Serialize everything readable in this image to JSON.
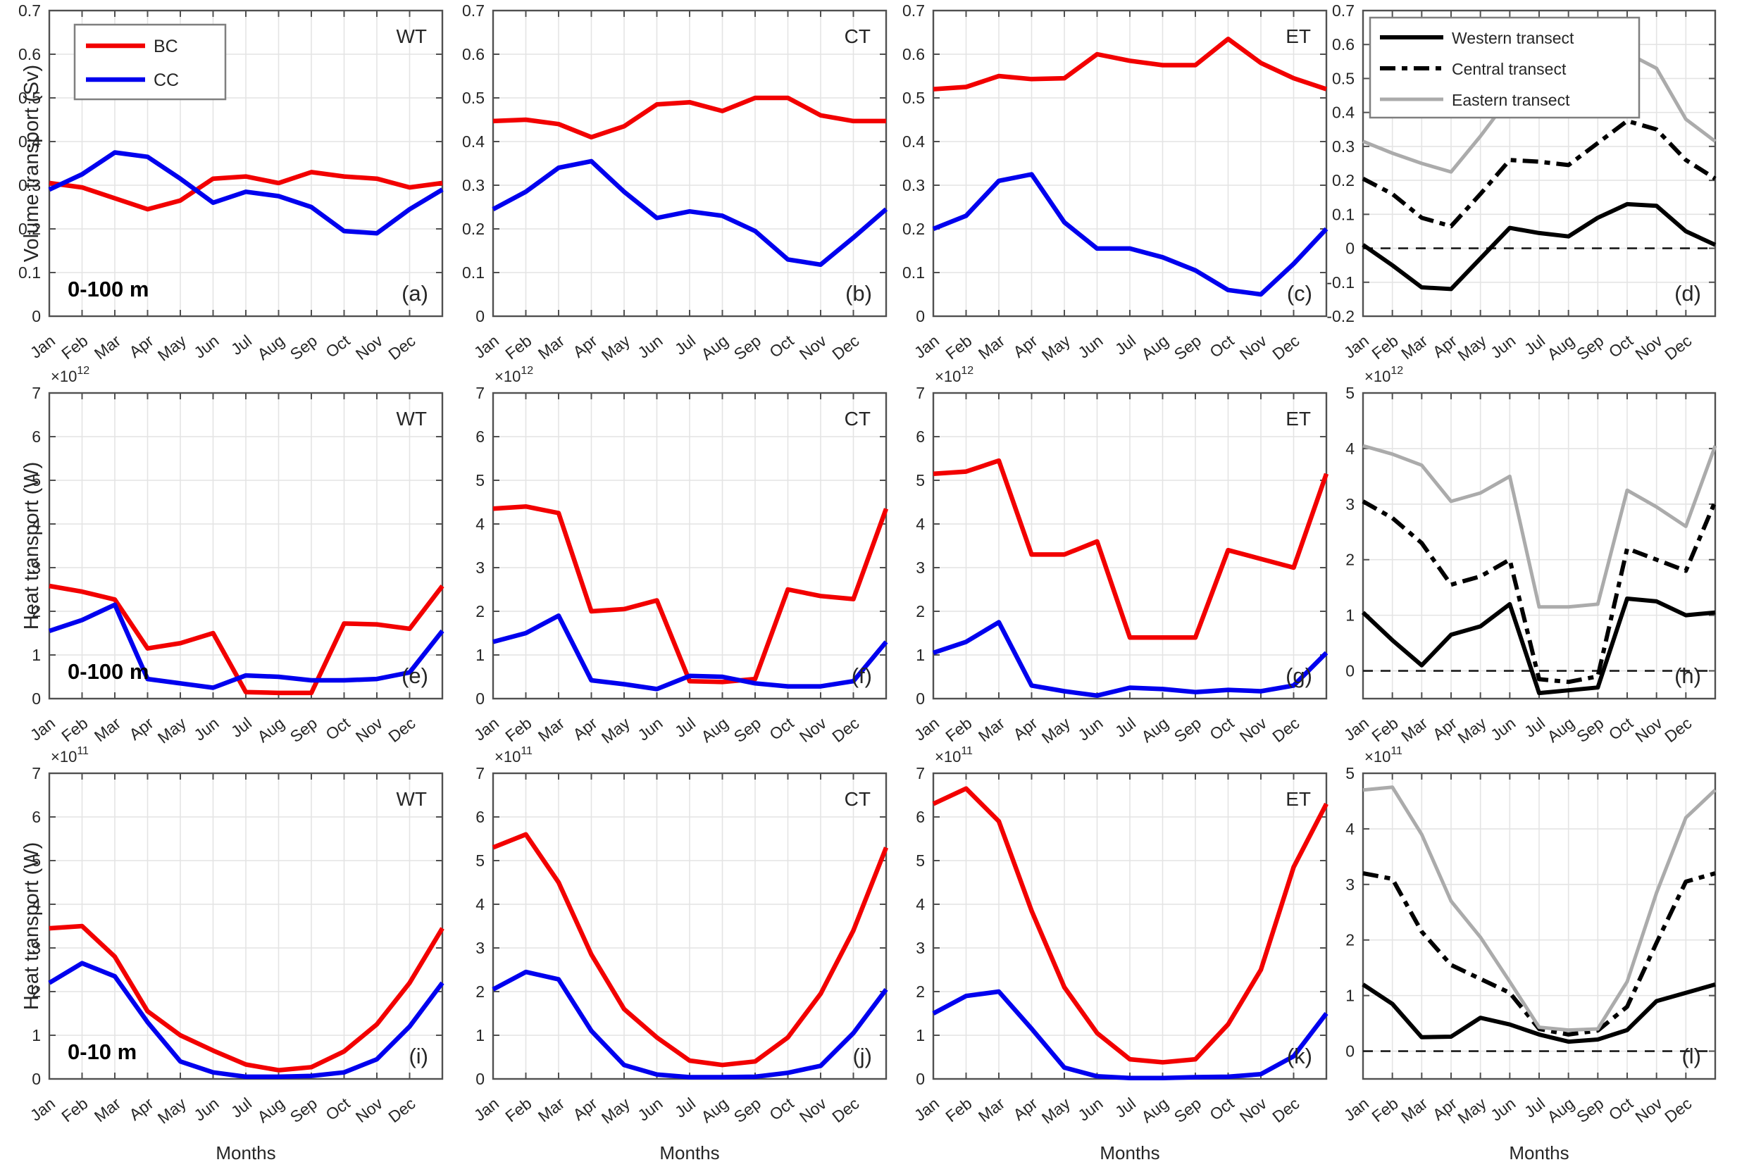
{
  "figure": {
    "xlabel": "Months",
    "row_ylabels": [
      "Volume transport (Sv)",
      "Heat transport (W)",
      "Heat transport (W)"
    ],
    "colors": {
      "bc": "#f20000",
      "cc": "#0000ee",
      "western": "#000000",
      "central": "#000000",
      "eastern": "#ababab",
      "grid": "#e4e4e4",
      "axis": "#505050",
      "text": "#262626",
      "zero_line": "#1a1a1a",
      "legend_border": "#7f7f7f"
    },
    "legends": {
      "a": [
        {
          "label": "BC",
          "color": "bc",
          "style": "solid"
        },
        {
          "label": "CC",
          "color": "cc",
          "style": "solid"
        }
      ],
      "d": [
        {
          "label": "Western transect",
          "color": "western",
          "style": "solid"
        },
        {
          "label": "Central transect",
          "color": "central",
          "style": "dashdot"
        },
        {
          "label": "Eastern transect",
          "color": "eastern",
          "style": "solid"
        }
      ]
    }
  },
  "chart_data": {
    "type": "line",
    "x_categories": [
      "Jan",
      "Feb",
      "Mar",
      "Apr",
      "May",
      "Jun",
      "Jul",
      "Aug",
      "Sep",
      "Oct",
      "Nov",
      "Dec"
    ],
    "cyclic_wrap": "each line has a 13th point at the right axis edge repeating the January value",
    "grid": "on",
    "panels": [
      {
        "id": "a",
        "letter": "(a)",
        "corner_tag": "WT",
        "depth_label": "0-100 m",
        "exponent": null,
        "ylim": [
          0,
          0.7
        ],
        "yticks": [
          0.7,
          0.6,
          0.5,
          0.4,
          0.3,
          0.2,
          0.1,
          0
        ],
        "zero_line": false,
        "legend": "a",
        "series": [
          {
            "name": "BC",
            "color": "bc",
            "style": "solid",
            "values": [
              0.305,
              0.295,
              0.27,
              0.245,
              0.265,
              0.315,
              0.32,
              0.305,
              0.33,
              0.32,
              0.315,
              0.295
            ]
          },
          {
            "name": "CC",
            "color": "cc",
            "style": "solid",
            "values": [
              0.29,
              0.325,
              0.375,
              0.365,
              0.315,
              0.26,
              0.285,
              0.275,
              0.25,
              0.195,
              0.19,
              0.245
            ]
          }
        ]
      },
      {
        "id": "b",
        "letter": "(b)",
        "corner_tag": "CT",
        "depth_label": null,
        "exponent": null,
        "ylim": [
          0,
          0.7
        ],
        "yticks": [
          0.7,
          0.6,
          0.5,
          0.4,
          0.3,
          0.2,
          0.1,
          0
        ],
        "zero_line": false,
        "legend": null,
        "series": [
          {
            "name": "BC",
            "color": "bc",
            "style": "solid",
            "values": [
              0.447,
              0.45,
              0.44,
              0.41,
              0.435,
              0.485,
              0.49,
              0.47,
              0.5,
              0.5,
              0.46,
              0.447
            ]
          },
          {
            "name": "CC",
            "color": "cc",
            "style": "solid",
            "values": [
              0.245,
              0.285,
              0.34,
              0.355,
              0.285,
              0.225,
              0.24,
              0.23,
              0.195,
              0.13,
              0.118,
              0.18
            ]
          }
        ]
      },
      {
        "id": "c",
        "letter": "(c)",
        "corner_tag": "ET",
        "depth_label": null,
        "exponent": null,
        "ylim": [
          0,
          0.7
        ],
        "yticks": [
          0.7,
          0.6,
          0.5,
          0.4,
          0.3,
          0.2,
          0.1,
          0
        ],
        "zero_line": false,
        "legend": null,
        "series": [
          {
            "name": "BC",
            "color": "bc",
            "style": "solid",
            "values": [
              0.52,
              0.525,
              0.55,
              0.543,
              0.545,
              0.6,
              0.585,
              0.575,
              0.575,
              0.635,
              0.58,
              0.545
            ]
          },
          {
            "name": "CC",
            "color": "cc",
            "style": "solid",
            "values": [
              0.2,
              0.23,
              0.31,
              0.325,
              0.215,
              0.155,
              0.155,
              0.135,
              0.105,
              0.06,
              0.05,
              0.12
            ]
          }
        ]
      },
      {
        "id": "d",
        "letter": "(d)",
        "corner_tag": null,
        "depth_label": null,
        "exponent": null,
        "ylim": [
          -0.2,
          0.7
        ],
        "yticks": [
          0.7,
          0.6,
          0.5,
          0.4,
          0.3,
          0.2,
          0.1,
          0,
          -0.1,
          -0.2
        ],
        "zero_line": true,
        "legend": "d",
        "series": [
          {
            "name": "Western transect",
            "color": "western",
            "style": "solid",
            "values": [
              0.01,
              -0.05,
              -0.115,
              -0.12,
              -0.03,
              0.06,
              0.045,
              0.035,
              0.09,
              0.13,
              0.125,
              0.05
            ]
          },
          {
            "name": "Central transect",
            "color": "central",
            "style": "dashdot",
            "values": [
              0.205,
              0.16,
              0.09,
              0.065,
              0.16,
              0.26,
              0.255,
              0.245,
              0.31,
              0.375,
              0.35,
              0.26
            ]
          },
          {
            "name": "Eastern transect",
            "color": "eastern",
            "style": "solid",
            "values": [
              0.315,
              0.28,
              0.25,
              0.225,
              0.33,
              0.445,
              0.435,
              0.445,
              0.48,
              0.575,
              0.53,
              0.38
            ]
          }
        ]
      },
      {
        "id": "e",
        "letter": "(e)",
        "corner_tag": "WT",
        "depth_label": "0-100 m",
        "exponent": "12",
        "ylim": [
          0,
          7
        ],
        "yticks": [
          7,
          6,
          5,
          4,
          3,
          2,
          1,
          0
        ],
        "zero_line": false,
        "legend": null,
        "series": [
          {
            "name": "BC",
            "color": "bc",
            "style": "solid",
            "values": [
              2.58,
              2.45,
              2.27,
              1.15,
              1.27,
              1.5,
              0.15,
              0.13,
              0.13,
              1.72,
              1.7,
              1.6
            ]
          },
          {
            "name": "CC",
            "color": "cc",
            "style": "solid",
            "values": [
              1.55,
              1.8,
              2.15,
              0.45,
              0.35,
              0.25,
              0.53,
              0.5,
              0.42,
              0.42,
              0.45,
              0.6
            ]
          }
        ]
      },
      {
        "id": "f",
        "letter": "(f)",
        "corner_tag": "CT",
        "depth_label": null,
        "exponent": "12",
        "ylim": [
          0,
          7
        ],
        "yticks": [
          7,
          6,
          5,
          4,
          3,
          2,
          1,
          0
        ],
        "zero_line": false,
        "legend": null,
        "series": [
          {
            "name": "BC",
            "color": "bc",
            "style": "solid",
            "values": [
              4.35,
              4.4,
              4.25,
              2.0,
              2.05,
              2.25,
              0.4,
              0.38,
              0.45,
              2.5,
              2.35,
              2.28
            ]
          },
          {
            "name": "CC",
            "color": "cc",
            "style": "solid",
            "values": [
              1.3,
              1.5,
              1.9,
              0.42,
              0.33,
              0.22,
              0.52,
              0.5,
              0.35,
              0.28,
              0.28,
              0.4
            ]
          }
        ]
      },
      {
        "id": "g",
        "letter": "(g)",
        "corner_tag": "ET",
        "depth_label": null,
        "exponent": "12",
        "ylim": [
          0,
          7
        ],
        "yticks": [
          7,
          6,
          5,
          4,
          3,
          2,
          1,
          0
        ],
        "zero_line": false,
        "legend": null,
        "series": [
          {
            "name": "BC",
            "color": "bc",
            "style": "solid",
            "values": [
              5.15,
              5.2,
              5.45,
              3.3,
              3.3,
              3.6,
              1.4,
              1.4,
              1.4,
              3.4,
              3.2,
              3.0
            ]
          },
          {
            "name": "CC",
            "color": "cc",
            "style": "solid",
            "values": [
              1.05,
              1.3,
              1.75,
              0.3,
              0.17,
              0.07,
              0.25,
              0.22,
              0.15,
              0.2,
              0.17,
              0.3
            ]
          }
        ]
      },
      {
        "id": "h",
        "letter": "(h)",
        "corner_tag": null,
        "depth_label": null,
        "exponent": "12",
        "ylim": [
          -0.5,
          5
        ],
        "yticks": [
          5,
          4,
          3,
          2,
          1,
          0
        ],
        "zero_line": true,
        "legend": null,
        "series": [
          {
            "name": "Western transect",
            "color": "western",
            "style": "solid",
            "values": [
              1.05,
              0.55,
              0.1,
              0.65,
              0.8,
              1.2,
              -0.4,
              -0.35,
              -0.3,
              1.3,
              1.25,
              1.0
            ]
          },
          {
            "name": "Central transect",
            "color": "central",
            "style": "dashdot",
            "values": [
              3.05,
              2.75,
              2.3,
              1.55,
              1.7,
              2.0,
              -0.15,
              -0.2,
              -0.1,
              2.2,
              2.0,
              1.8
            ]
          },
          {
            "name": "Eastern transect",
            "color": "eastern",
            "style": "solid",
            "values": [
              4.05,
              3.9,
              3.7,
              3.05,
              3.2,
              3.5,
              1.15,
              1.15,
              1.2,
              3.25,
              2.95,
              2.6
            ]
          }
        ]
      },
      {
        "id": "i",
        "letter": "(i)",
        "corner_tag": "WT",
        "depth_label": "0-10 m",
        "exponent": "11",
        "ylim": [
          0,
          7
        ],
        "yticks": [
          7,
          6,
          5,
          4,
          3,
          2,
          1,
          0
        ],
        "zero_line": false,
        "legend": null,
        "series": [
          {
            "name": "BC",
            "color": "bc",
            "style": "solid",
            "values": [
              3.45,
              3.5,
              2.8,
              1.55,
              1.0,
              0.65,
              0.33,
              0.2,
              0.27,
              0.63,
              1.25,
              2.2
            ]
          },
          {
            "name": "CC",
            "color": "cc",
            "style": "solid",
            "values": [
              2.2,
              2.65,
              2.35,
              1.3,
              0.4,
              0.15,
              0.05,
              0.05,
              0.07,
              0.15,
              0.45,
              1.2
            ]
          }
        ]
      },
      {
        "id": "j",
        "letter": "(j)",
        "corner_tag": "CT",
        "depth_label": null,
        "exponent": "11",
        "ylim": [
          0,
          7
        ],
        "yticks": [
          7,
          6,
          5,
          4,
          3,
          2,
          1,
          0
        ],
        "zero_line": false,
        "legend": null,
        "series": [
          {
            "name": "BC",
            "color": "bc",
            "style": "solid",
            "values": [
              5.3,
              5.6,
              4.5,
              2.85,
              1.6,
              0.95,
              0.42,
              0.32,
              0.4,
              0.95,
              1.95,
              3.4
            ]
          },
          {
            "name": "CC",
            "color": "cc",
            "style": "solid",
            "values": [
              2.05,
              2.45,
              2.28,
              1.1,
              0.32,
              0.1,
              0.04,
              0.04,
              0.05,
              0.14,
              0.3,
              1.05
            ]
          }
        ]
      },
      {
        "id": "k",
        "letter": "(k)",
        "corner_tag": "ET",
        "depth_label": null,
        "exponent": "11",
        "ylim": [
          0,
          7
        ],
        "yticks": [
          7,
          6,
          5,
          4,
          3,
          2,
          1,
          0
        ],
        "zero_line": false,
        "legend": null,
        "series": [
          {
            "name": "BC",
            "color": "bc",
            "style": "solid",
            "values": [
              6.3,
              6.65,
              5.9,
              3.85,
              2.1,
              1.05,
              0.45,
              0.38,
              0.45,
              1.25,
              2.5,
              4.85
            ]
          },
          {
            "name": "CC",
            "color": "cc",
            "style": "solid",
            "values": [
              1.5,
              1.9,
              2.0,
              1.15,
              0.26,
              0.06,
              0.02,
              0.02,
              0.04,
              0.05,
              0.11,
              0.52
            ]
          }
        ]
      },
      {
        "id": "l",
        "letter": "(l)",
        "corner_tag": null,
        "depth_label": null,
        "exponent": "11",
        "ylim": [
          -0.5,
          5
        ],
        "yticks": [
          5,
          4,
          3,
          2,
          1,
          0
        ],
        "zero_line": true,
        "legend": null,
        "series": [
          {
            "name": "Western transect",
            "color": "western",
            "style": "solid",
            "values": [
              1.2,
              0.85,
              0.25,
              0.26,
              0.6,
              0.48,
              0.3,
              0.17,
              0.21,
              0.38,
              0.9,
              1.05
            ]
          },
          {
            "name": "Central transect",
            "color": "central",
            "style": "dashdot",
            "values": [
              3.2,
              3.1,
              2.15,
              1.55,
              1.3,
              1.05,
              0.4,
              0.3,
              0.37,
              0.8,
              1.95,
              3.05
            ]
          },
          {
            "name": "Eastern transect",
            "color": "eastern",
            "style": "solid",
            "values": [
              4.7,
              4.75,
              3.9,
              2.7,
              2.05,
              1.25,
              0.43,
              0.38,
              0.4,
              1.25,
              2.85,
              4.2
            ]
          }
        ]
      }
    ]
  }
}
